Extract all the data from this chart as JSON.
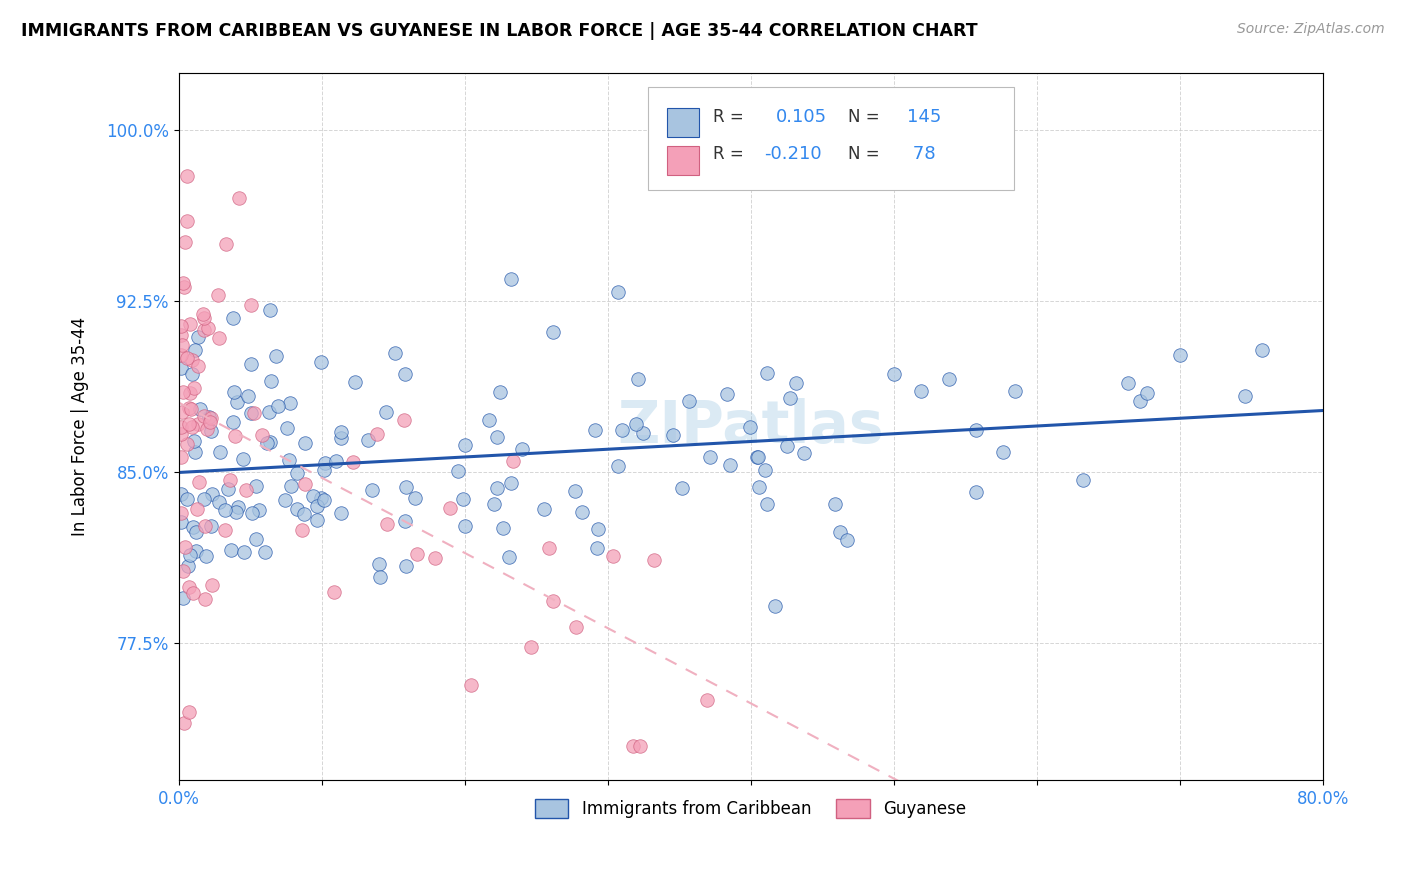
{
  "title": "IMMIGRANTS FROM CARIBBEAN VS GUYANESE IN LABOR FORCE | AGE 35-44 CORRELATION CHART",
  "source": "Source: ZipAtlas.com",
  "legend_label1": "Immigrants from Caribbean",
  "legend_label2": "Guyanese",
  "R1": 0.105,
  "N1": 145,
  "R2": -0.21,
  "N2": 78,
  "color_blue": "#a8c4e0",
  "color_pink": "#f4a0b8",
  "line_blue": "#2255aa",
  "line_pink": "#f0b0c0",
  "watermark": "ZIPatlas",
  "xlim": [
    0.0,
    0.8
  ],
  "ylim": [
    0.715,
    1.025
  ],
  "ytick_positions": [
    0.775,
    0.85,
    0.925,
    1.0
  ],
  "ytick_labels": [
    "77.5%",
    "85.0%",
    "92.5%",
    "100.0%"
  ],
  "xtick_labels_left": "0.0%",
  "xtick_labels_right": "80.0%"
}
